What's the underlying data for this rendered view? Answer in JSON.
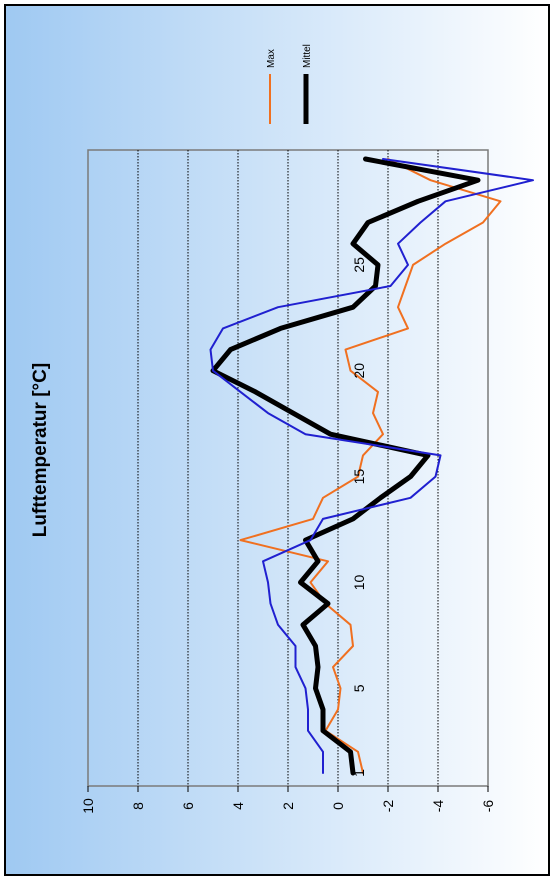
{
  "chart_data": {
    "type": "line",
    "title": "Lufttemperatur [°C]",
    "xlabel": "",
    "ylabel": "",
    "orientation": "rotated-90-ccw",
    "xlim": [
      1,
      30
    ],
    "ylim": [
      -6,
      10
    ],
    "yticks": [
      "10",
      "8",
      "6",
      "4",
      "2",
      "0",
      "-2",
      "-4",
      "-6"
    ],
    "xticks": [
      "1",
      "5",
      "10",
      "15",
      "20",
      "25"
    ],
    "grid": true,
    "legend": "top-right",
    "x": [
      1,
      2,
      3,
      4,
      5,
      6,
      7,
      8,
      9,
      10,
      11,
      12,
      13,
      14,
      15,
      16,
      17,
      18,
      19,
      20,
      21,
      22,
      23,
      24,
      25,
      26,
      27,
      28,
      29,
      30
    ],
    "series": [
      {
        "name": "Max",
        "color": "#f07020",
        "width": 2,
        "values": [
          -1.0,
          -0.8,
          0.5,
          0.0,
          -0.1,
          0.2,
          -0.6,
          -0.5,
          0.5,
          1.1,
          0.4,
          3.9,
          1.0,
          0.6,
          -0.8,
          -1.0,
          -1.8,
          -1.4,
          -1.6,
          -0.5,
          -0.3,
          -2.8,
          -2.4,
          -2.7,
          -3.0,
          -4.3,
          -5.8,
          -6.5,
          -3.7,
          -2.0
        ]
      },
      {
        "name": "Mittel",
        "color": "#000000",
        "width": 5,
        "values": [
          -0.6,
          -0.5,
          0.6,
          0.6,
          0.9,
          0.8,
          0.9,
          1.4,
          0.4,
          1.5,
          0.8,
          1.3,
          -0.6,
          -1.7,
          -2.9,
          -3.6,
          0.3,
          1.8,
          3.3,
          5.0,
          4.3,
          2.3,
          -0.6,
          -1.5,
          -1.6,
          -0.6,
          -1.2,
          -3.2,
          -5.6,
          -1.1
        ]
      },
      {
        "name": "",
        "color": "#2020d0",
        "width": 2,
        "values": [
          0.6,
          0.6,
          1.2,
          1.2,
          1.3,
          1.7,
          1.7,
          2.4,
          2.7,
          2.8,
          3.0,
          1.1,
          0.6,
          -2.9,
          -3.9,
          -4.1,
          1.3,
          2.8,
          3.9,
          5.0,
          5.1,
          4.6,
          2.4,
          -2.1,
          -2.8,
          -2.4,
          -3.3,
          -4.3,
          -7.8,
          -1.8
        ]
      }
    ]
  }
}
